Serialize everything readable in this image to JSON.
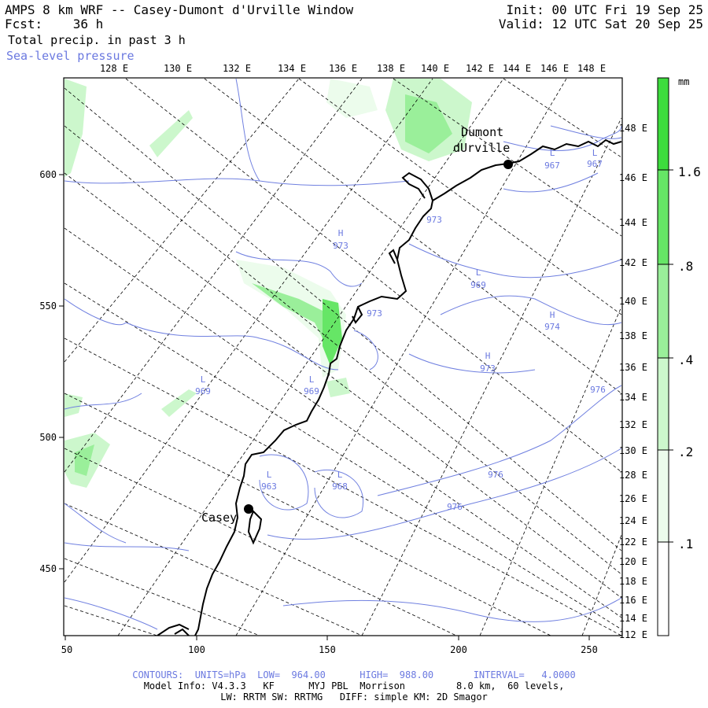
{
  "header": {
    "title": "AMPS 8 km WRF -- Casey-Dumont d'Urville Window",
    "fcst": "Fcst:    36 h",
    "field1": "Total precip. in past 3 h",
    "field2": "Sea-level pressure",
    "init": "Init: 00 UTC Fri 19 Sep 25",
    "valid": "Valid: 12 UTC Sat 20 Sep 25"
  },
  "map": {
    "top_lon_labels": [
      "128 E",
      "130 E",
      "132 E",
      "134 E",
      "136 E",
      "138 E",
      "140 E",
      "142 E",
      "144 E",
      "146 E",
      "148 E"
    ],
    "right_lat_labels": [
      "148 E",
      "146 E",
      "144 E",
      "142 E",
      "140 E",
      "138 E",
      "136 E",
      "134 E",
      "132 E",
      "130 E",
      "128 E",
      "126 E",
      "124 E",
      "122 E",
      "120 E",
      "118 E",
      "116 E",
      "114 E",
      "112 E"
    ],
    "x_ticks": [
      "50",
      "100",
      "150",
      "200",
      "250"
    ],
    "y_ticks": [
      "600",
      "550",
      "500",
      "450"
    ],
    "stations": [
      {
        "name_lines": [
          "Dumont",
          "dUrville"
        ]
      },
      {
        "name_lines": [
          "Casey"
        ]
      }
    ],
    "pressure_centers": [
      {
        "type": "H",
        "value": "973"
      },
      {
        "type": "L",
        "value": "969"
      },
      {
        "type": "973",
        "value": ""
      },
      {
        "type": "H",
        "value": "974"
      },
      {
        "type": "H",
        "value": "973"
      },
      {
        "type": "L",
        "value": "969"
      },
      {
        "type": "L",
        "value": "969"
      },
      {
        "type": "L",
        "value": "963"
      },
      {
        "type": "L",
        "value": "968"
      },
      {
        "type": "L",
        "value": "967"
      },
      {
        "type": "L",
        "value": "967"
      },
      {
        "type": "976",
        "value": ""
      },
      {
        "type": "976",
        "value": ""
      },
      {
        "type": "976",
        "value": ""
      },
      {
        "type": "973",
        "value": ""
      }
    ]
  },
  "colorbar": {
    "unit": "mm",
    "labels": [
      "1.6",
      ".8",
      ".4",
      ".2",
      ".1"
    ],
    "colors": [
      "#3ddc3d",
      "#66e666",
      "#9aef9a",
      "#ccf7cc",
      "#ecfcec"
    ]
  },
  "footer": {
    "contours": "CONTOURS:  UNITS=hPa  LOW=  964.00      HIGH=  988.00       INTERVAL=   4.0000",
    "model_info": "Model Info: V4.3.3   KF      MYJ PBL  Morrison         8.0 km,  60 levels,",
    "physics": "LW: RRTM SW: RRTMG   DIFF: simple KM: 2D Smagor"
  },
  "colors": {
    "contour": "#7080e0",
    "grid": "#000000",
    "coast": "#000000"
  }
}
